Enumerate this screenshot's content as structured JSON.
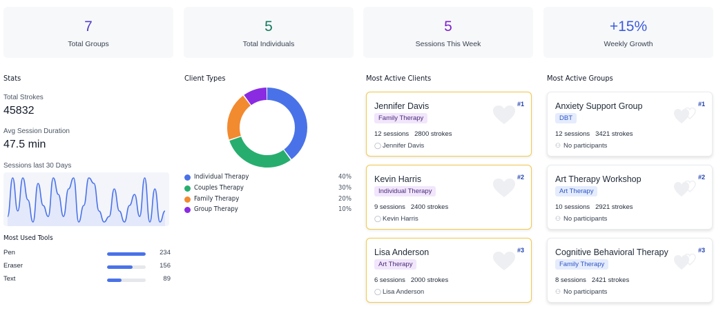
{
  "summary": [
    {
      "value": "7",
      "label": "Total Groups",
      "color": "#4f3fc9"
    },
    {
      "value": "5",
      "label": "Total Individuals",
      "color": "#177a5e"
    },
    {
      "value": "5",
      "label": "Sessions This Week",
      "color": "#7e22ce"
    },
    {
      "value": "+15%",
      "label": "Weekly Growth",
      "color": "#3b5bdb"
    }
  ],
  "stats": {
    "title": "Stats",
    "total_strokes_label": "Total Strokes",
    "total_strokes": "45832",
    "avg_duration_label": "Avg Session Duration",
    "avg_duration": "47.5 min",
    "sessions_label": "Sessions last 30 Days"
  },
  "tools": {
    "title": "Most Used Tools",
    "items": [
      {
        "name": "Pen",
        "value": 234
      },
      {
        "name": "Eraser",
        "value": 156
      },
      {
        "name": "Text",
        "value": 89
      }
    ]
  },
  "client_types": {
    "title": "Client Types",
    "items": [
      {
        "name": "Individual Therapy",
        "pct": "40%",
        "value": 40,
        "color": "#4a72e8"
      },
      {
        "name": "Couples Therapy",
        "pct": "30%",
        "value": 30,
        "color": "#27ae6f"
      },
      {
        "name": "Family Therapy",
        "pct": "20%",
        "value": 20,
        "color": "#f28a30"
      },
      {
        "name": "Group Therapy",
        "pct": "10%",
        "value": 10,
        "color": "#8a2be2"
      }
    ]
  },
  "clients": {
    "title": "Most Active Clients",
    "items": [
      {
        "rank": "#1",
        "name": "Jennifer Davis",
        "tag": "Family Therapy",
        "sessions": "12 sessions",
        "strokes": "2800 strokes",
        "person": "Jennifer Davis"
      },
      {
        "rank": "#2",
        "name": "Kevin Harris",
        "tag": "Individual Therapy",
        "sessions": "9 sessions",
        "strokes": "2400 strokes",
        "person": "Kevin Harris"
      },
      {
        "rank": "#3",
        "name": "Lisa Anderson",
        "tag": "Art Therapy",
        "sessions": "6 sessions",
        "strokes": "2000 strokes",
        "person": "Lisa Anderson"
      }
    ]
  },
  "groups": {
    "title": "Most Active Groups",
    "items": [
      {
        "rank": "#1",
        "name": "Anxiety Support Group",
        "tag": "DBT",
        "sessions": "12 sessions",
        "strokes": "3421 strokes",
        "person": "No participants"
      },
      {
        "rank": "#2",
        "name": "Art Therapy Workshop",
        "tag": "Art Therapy",
        "sessions": "10 sessions",
        "strokes": "2921 strokes",
        "person": "No participants"
      },
      {
        "rank": "#3",
        "name": "Cognitive Behavioral Therapy",
        "tag": "Family Therapy",
        "sessions": "8 sessions",
        "strokes": "2421 strokes",
        "person": "No participants"
      }
    ]
  },
  "chart_data": {
    "type": "line",
    "values": [
      2,
      9,
      3,
      9,
      5,
      1,
      8,
      4,
      2,
      9,
      6,
      2,
      7,
      9,
      1,
      4,
      9,
      8,
      3,
      1,
      2,
      7,
      3,
      1,
      4,
      6,
      2,
      9,
      1,
      7,
      1,
      3
    ],
    "title": "",
    "xlabel": "",
    "ylabel": "",
    "grid": false
  }
}
